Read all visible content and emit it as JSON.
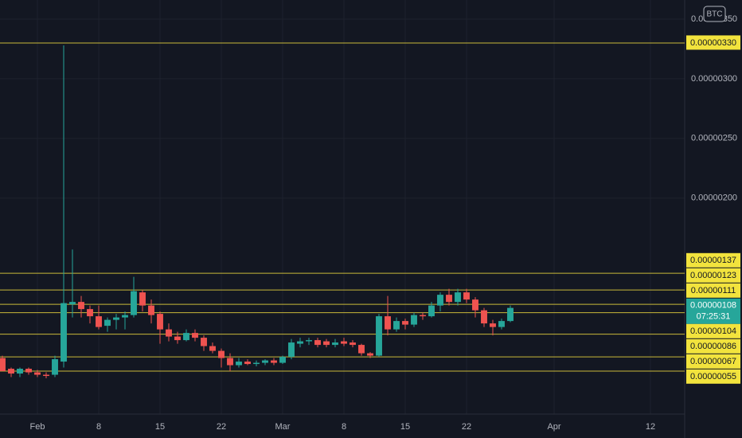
{
  "chart_data": {
    "type": "candlestick",
    "badge": "BTC",
    "up_color": "#26a69a",
    "down_color": "#ef5350",
    "line_color": "#c9b93a",
    "badge_color": "#f2e33d",
    "grid": true,
    "x": [
      "Jan 28",
      "Jan 29",
      "Jan 30",
      "Jan 31",
      "Feb 1",
      "Feb 2",
      "Feb 3",
      "Feb 4",
      "Feb 5",
      "Feb 6",
      "Feb 7",
      "Feb 8",
      "Feb 9",
      "Feb 10",
      "Feb 11",
      "Feb 12",
      "Feb 13",
      "Feb 14",
      "Feb 15",
      "Feb 16",
      "Feb 17",
      "Feb 18",
      "Feb 19",
      "Feb 20",
      "Feb 21",
      "Feb 22",
      "Feb 23",
      "Feb 24",
      "Feb 25",
      "Feb 26",
      "Feb 27",
      "Feb 28",
      "Mar 1",
      "Mar 2",
      "Mar 3",
      "Mar 4",
      "Mar 5",
      "Mar 6",
      "Mar 7",
      "Mar 8",
      "Mar 9",
      "Mar 10",
      "Mar 11",
      "Mar 12",
      "Mar 13",
      "Mar 14",
      "Mar 15",
      "Mar 16",
      "Mar 17",
      "Mar 18",
      "Mar 19",
      "Mar 20",
      "Mar 21",
      "Mar 22",
      "Mar 23",
      "Mar 24",
      "Mar 25",
      "Mar 26",
      "Mar 27"
    ],
    "open": [
      6.6e-07,
      5.7e-07,
      5.3e-07,
      5.7e-07,
      5.4e-07,
      5.2e-07,
      5.2e-07,
      6.3e-07,
      1.11e-06,
      1.13e-06,
      1.07e-06,
      1.01e-06,
      9.3e-07,
      9.8e-07,
      1e-06,
      1.02e-06,
      1.21e-06,
      1.1e-06,
      1.03e-06,
      9e-07,
      8.4e-07,
      8.1e-07,
      8.7e-07,
      8.3e-07,
      7.6e-07,
      7.2e-07,
      6.6e-07,
      6e-07,
      6.3e-07,
      6.1e-07,
      6.2e-07,
      6.4e-07,
      6.2e-07,
      6.7e-07,
      7.8e-07,
      8e-07,
      8.1e-07,
      8e-07,
      7.7e-07,
      8e-07,
      7.9e-07,
      7.7e-07,
      7e-07,
      6.8e-07,
      1.01e-06,
      9e-07,
      9.7e-07,
      9.4e-07,
      1.02e-06,
      1.01e-06,
      1.1e-06,
      1.19e-06,
      1.13e-06,
      1.21e-06,
      1.15e-06,
      1.06e-06,
      9.5e-07,
      9.2e-07,
      9.7e-07
    ],
    "high": [
      6.8e-07,
      5.8e-07,
      5.8e-07,
      5.8e-07,
      5.6e-07,
      5.4e-07,
      6.8e-07,
      3.28e-06,
      1.57e-06,
      1.18e-06,
      1.1e-06,
      1.1e-06,
      1e-06,
      1.03e-06,
      1.05e-06,
      1.34e-06,
      1.23e-06,
      1.15e-06,
      1.05e-06,
      9.5e-07,
      8.8e-07,
      9e-07,
      9e-07,
      8.5e-07,
      7.9e-07,
      7.4e-07,
      7e-07,
      6.6e-07,
      6.5e-07,
      6.4e-07,
      6.5e-07,
      6.6e-07,
      6.8e-07,
      8.2e-07,
      8.3e-07,
      8.3e-07,
      8.3e-07,
      8.2e-07,
      8.2e-07,
      8.3e-07,
      8.1e-07,
      7.8e-07,
      7.1e-07,
      1.03e-06,
      1.18e-06,
      1e-06,
      9.9e-07,
      1.04e-06,
      1.04e-06,
      1.13e-06,
      1.21e-06,
      1.24e-06,
      1.24e-06,
      1.24e-06,
      1.17e-06,
      1.08e-06,
      9.8e-07,
      9.9e-07,
      1.1e-06
    ],
    "low": [
      5.5e-07,
      5e-07,
      5e-07,
      5.2e-07,
      5e-07,
      4.9e-07,
      5e-07,
      5.8e-07,
      1e-06,
      1e-06,
      9.5e-07,
      9e-07,
      8.8e-07,
      9e-07,
      9e-07,
      1e-06,
      1.05e-06,
      9.5e-07,
      7.8e-07,
      8e-07,
      7.8e-07,
      8e-07,
      8e-07,
      7.2e-07,
      7e-07,
      5.8e-07,
      5.5e-07,
      5.8e-07,
      6e-07,
      5.9e-07,
      6e-07,
      6e-07,
      6.1e-07,
      6.5e-07,
      7.5e-07,
      7.7e-07,
      7.5e-07,
      7.5e-07,
      7.5e-07,
      7.6e-07,
      7.5e-07,
      6.8e-07,
      6.6e-07,
      6.7e-07,
      8.5e-07,
      8.8e-07,
      9e-07,
      9.2e-07,
      9.8e-07,
      1e-06,
      1.05e-06,
      1.1e-06,
      1.1e-06,
      1.12e-06,
      1e-06,
      9.2e-07,
      8.5e-07,
      9e-07,
      9.6e-07
    ],
    "close": [
      5.5e-07,
      5.3e-07,
      5.7e-07,
      5.4e-07,
      5.2e-07,
      5.1e-07,
      6.5e-07,
      1.12e-06,
      1.13e-06,
      1.07e-06,
      1.01e-06,
      9.2e-07,
      9.8e-07,
      1e-06,
      1.02e-06,
      1.22e-06,
      1.1e-06,
      1.02e-06,
      9e-07,
      8.4e-07,
      8.1e-07,
      8.7e-07,
      8.3e-07,
      7.6e-07,
      7.2e-07,
      6.6e-07,
      6e-07,
      6.3e-07,
      6.1e-07,
      6.2e-07,
      6.4e-07,
      6.2e-07,
      6.7e-07,
      7.9e-07,
      8e-07,
      8.1e-07,
      7.7e-07,
      7.7e-07,
      7.9e-07,
      7.8e-07,
      7.7e-07,
      7e-07,
      6.8e-07,
      1.01e-06,
      9e-07,
      9.7e-07,
      9.4e-07,
      1.02e-06,
      1.01e-06,
      1.1e-06,
      1.19e-06,
      1.13e-06,
      1.21e-06,
      1.15e-06,
      1.06e-06,
      9.5e-07,
      9.2e-07,
      9.7e-07,
      1.08e-06
    ],
    "xlim": [
      "Jan 28",
      "Apr 15"
    ],
    "xticks": [
      {
        "value": "Feb 1",
        "label": "Feb"
      },
      {
        "value": "Feb 8",
        "label": "8"
      },
      {
        "value": "Feb 15",
        "label": "15"
      },
      {
        "value": "Feb 22",
        "label": "22"
      },
      {
        "value": "Mar 1",
        "label": "Mar"
      },
      {
        "value": "Mar 8",
        "label": "8"
      },
      {
        "value": "Mar 15",
        "label": "15"
      },
      {
        "value": "Mar 22",
        "label": "22"
      },
      {
        "value": "Apr 1",
        "label": "Apr"
      },
      {
        "value": "Apr 12",
        "label": "12"
      }
    ],
    "ylim": [
      1.9e-07,
      3.66e-06
    ],
    "yticks": [
      {
        "value": 3.5e-06,
        "label": "0.00000350"
      },
      {
        "value": 3e-06,
        "label": "0.00000300"
      },
      {
        "value": 2.5e-06,
        "label": "0.00000250"
      },
      {
        "value": 2e-06,
        "label": "0.00000200"
      }
    ],
    "hlines": [
      {
        "value": 3.3e-06,
        "label": "0.00000330"
      },
      {
        "value": 1.37e-06,
        "label": "0.00000137"
      },
      {
        "value": 1.23e-06,
        "label": "0.00000123"
      },
      {
        "value": 1.11e-06,
        "label": "0.00000111"
      },
      {
        "value": 1.04e-06,
        "label": "0.00000104"
      },
      {
        "value": 8.6e-07,
        "label": "0.00000086"
      },
      {
        "value": 6.7e-07,
        "label": "0.00000067"
      },
      {
        "value": 5.5e-07,
        "label": "0.00000055"
      }
    ],
    "last_price": {
      "value": 1.08e-06,
      "label": "0.00000108",
      "countdown": "07:25:31"
    }
  }
}
